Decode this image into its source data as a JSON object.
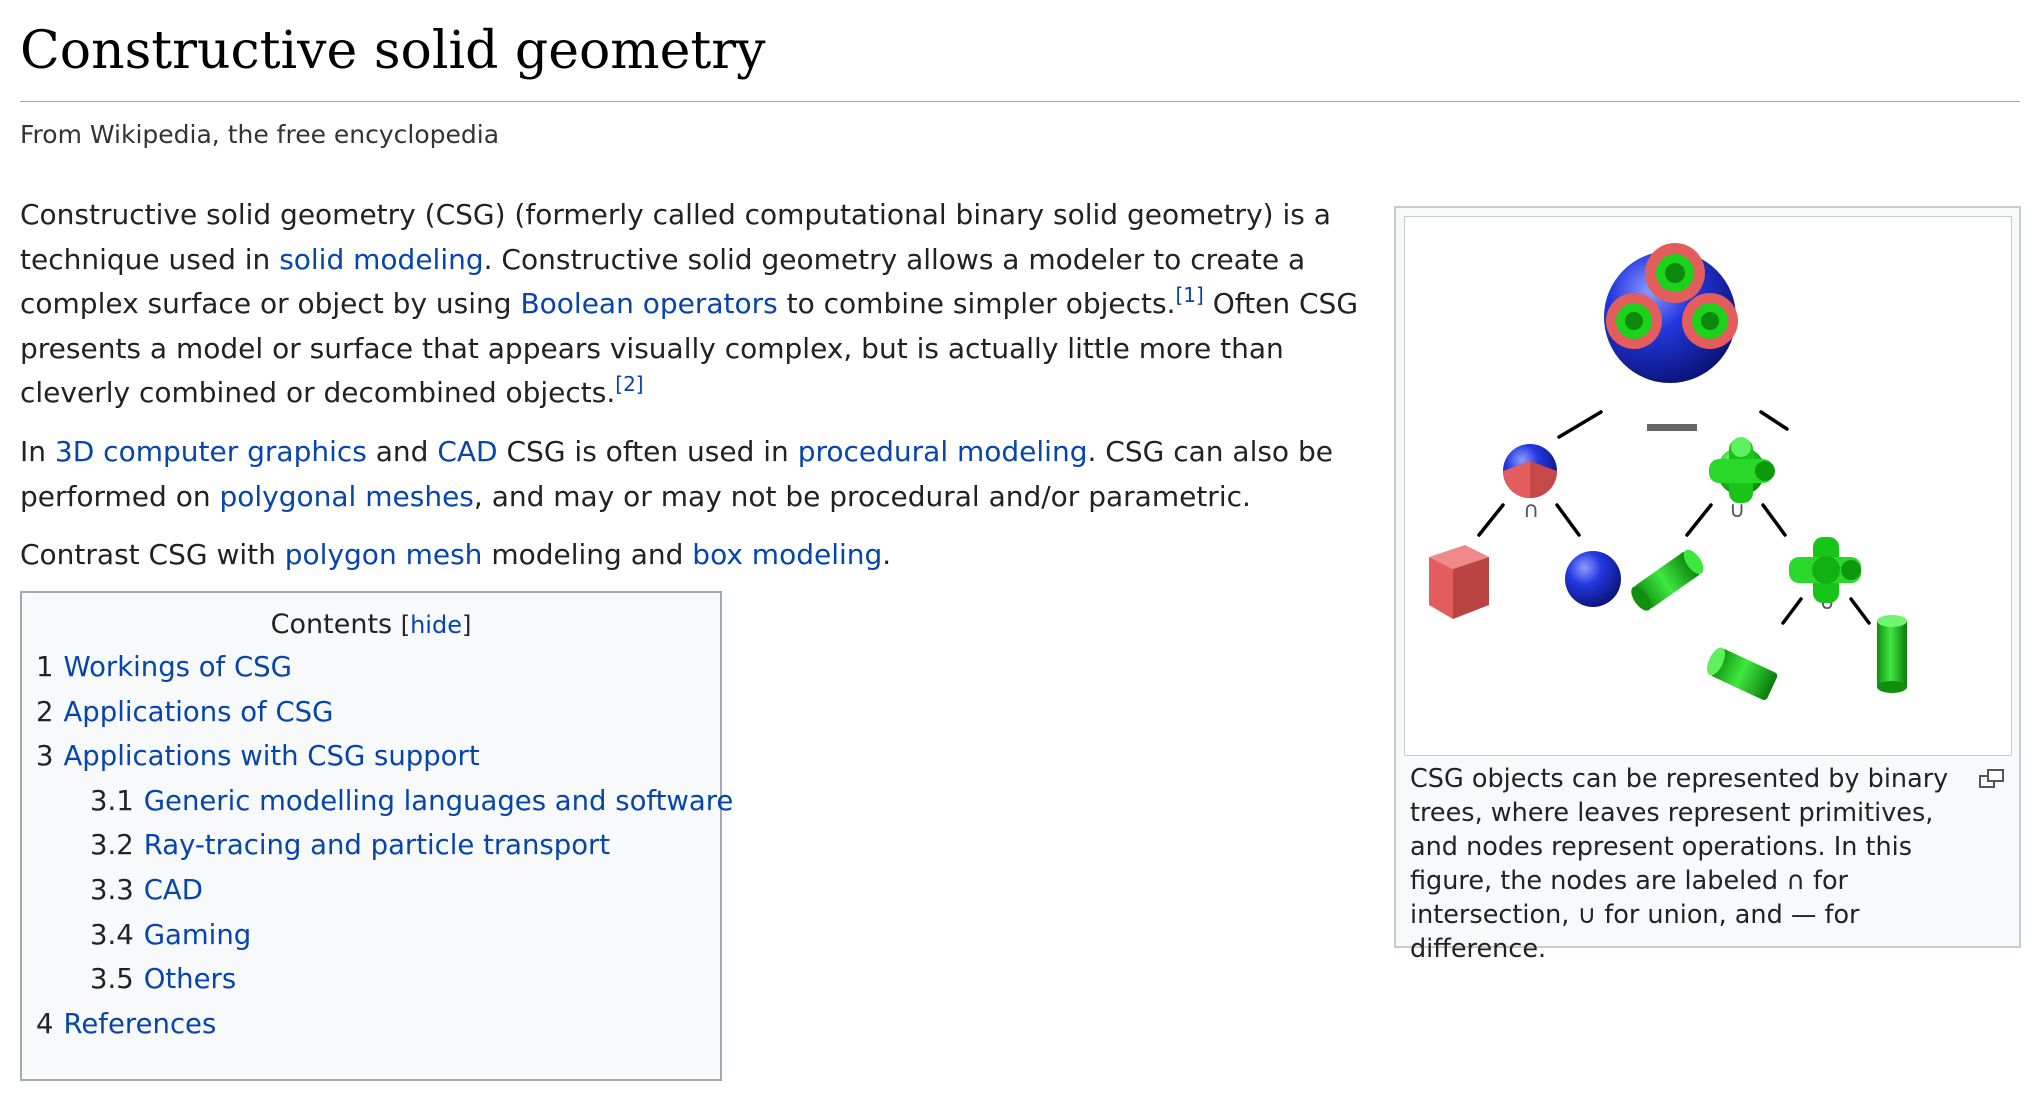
{
  "page": {
    "title": "Constructive solid geometry",
    "tagline": "From Wikipedia, the free encyclopedia"
  },
  "intro": {
    "p1_a": "Constructive solid geometry (CSG) (formerly called computational binary solid geometry) is a technique used in ",
    "p1_link1": "solid modeling",
    "p1_b": ". Constructive solid geometry allows a modeler to create a complex surface or object by using ",
    "p1_link2": "Boolean operators",
    "p1_c": " to combine simpler objects.",
    "p1_ref1": "[1]",
    "p1_d": " Often CSG presents a model or surface that appears visually complex, but is actually little more than cleverly combined or decombined objects.",
    "p1_ref2": "[2]",
    "p2_a": "In ",
    "p2_link1": "3D computer graphics",
    "p2_b": " and ",
    "p2_link2": "CAD",
    "p2_c": " CSG is often used in ",
    "p2_link3": "procedural modeling",
    "p2_d": ". CSG can also be performed on ",
    "p2_link4": "polygonal meshes",
    "p2_e": ", and may or may not be procedural and/or parametric.",
    "p3_a": "Contrast CSG with ",
    "p3_link1": "polygon mesh",
    "p3_b": " modeling and ",
    "p3_link2": "box modeling",
    "p3_c": "."
  },
  "toc": {
    "title": "Contents",
    "hide_open": "[",
    "hide_label": "hide",
    "hide_close": "]",
    "items": [
      {
        "num": "1",
        "label": "Workings of CSG"
      },
      {
        "num": "2",
        "label": "Applications of CSG"
      },
      {
        "num": "3",
        "label": "Applications with CSG support"
      },
      {
        "num": "3.1",
        "label": "Generic modelling languages and software"
      },
      {
        "num": "3.2",
        "label": "Ray-tracing and particle transport"
      },
      {
        "num": "3.3",
        "label": "CAD"
      },
      {
        "num": "3.4",
        "label": "Gaming"
      },
      {
        "num": "3.5",
        "label": "Others"
      },
      {
        "num": "4",
        "label": "References"
      }
    ]
  },
  "figure": {
    "caption": "CSG objects can be represented by binary trees, where leaves represent primitives, and nodes represent operations. In this figure, the nodes are labeled ∩ for intersection, ∪ for union, and — for difference.",
    "op_intersection": "∩",
    "op_union": "∪",
    "op_union2": "∪",
    "colors": {
      "red": "#e35d5d",
      "blue": "#1c2fd6",
      "green": "#13c313"
    },
    "icon": "magnify-icon"
  }
}
